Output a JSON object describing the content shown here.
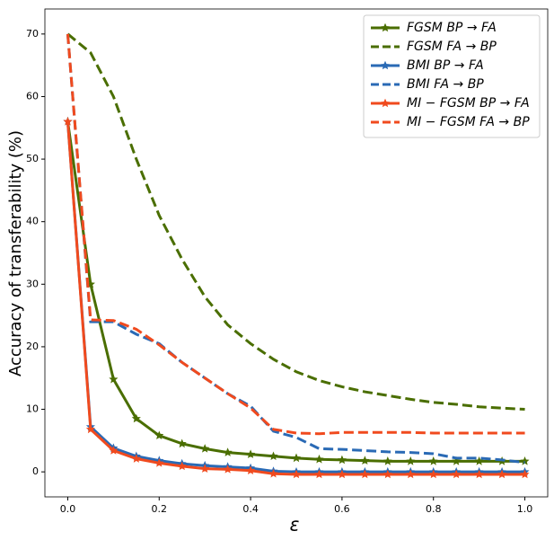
{
  "chart_data": {
    "type": "line",
    "xlabel": "ε",
    "ylabel": "Accuracy of transferability (%)",
    "x": [
      0,
      0.05,
      0.1,
      0.15,
      0.2,
      0.25,
      0.3,
      0.35,
      0.4,
      0.45,
      0.5,
      0.55,
      0.6,
      0.65,
      0.7,
      0.75,
      0.8,
      0.85,
      0.9,
      0.95,
      1.0
    ],
    "xlim": [
      -0.05,
      1.05
    ],
    "xticks": [
      {
        "value": 0,
        "label": "0.0"
      },
      0.2,
      0.4,
      0.6,
      0.8,
      {
        "value": 1,
        "label": "1.0"
      }
    ],
    "ylim": [
      -4,
      74
    ],
    "yticks": [
      0,
      10,
      20,
      30,
      40,
      50,
      60,
      70
    ],
    "legend": "upper right",
    "series": [
      {
        "name": "FGSM BP → FA",
        "color": "#4a6e00",
        "linestyle": "solid",
        "marker": "star",
        "values": [
          56,
          30,
          14.8,
          8.5,
          5.8,
          4.5,
          3.7,
          3.1,
          2.8,
          2.5,
          2.2,
          2.0,
          1.9,
          1.8,
          1.7,
          1.7,
          1.7,
          1.7,
          1.7,
          1.7,
          1.7
        ]
      },
      {
        "name": "FGSM FA → BP",
        "color": "#4a6e00",
        "linestyle": "dashed",
        "values": [
          70,
          67,
          60,
          50,
          41,
          34,
          28,
          23.5,
          20.5,
          18,
          16,
          14.6,
          13.6,
          12.8,
          12.2,
          11.6,
          11.1,
          10.8,
          10.4,
          10.2,
          10.0
        ]
      },
      {
        "name": "BMI BP → FA",
        "color": "#2a6ab5",
        "linestyle": "solid",
        "marker": "star",
        "values": [
          56,
          7.2,
          3.8,
          2.5,
          1.8,
          1.3,
          1.0,
          0.8,
          0.6,
          0.1,
          0.0,
          0.0,
          0.0,
          0.0,
          0.0,
          0.0,
          0.0,
          0.0,
          0.0,
          0.0,
          0.0
        ]
      },
      {
        "name": "BMI FA → BP",
        "color": "#2a6ab5",
        "linestyle": "dashed",
        "values": [
          70,
          24,
          24,
          22,
          20.5,
          17.5,
          15,
          12.5,
          10.5,
          6.5,
          5.5,
          3.7,
          3.6,
          3.4,
          3.2,
          3.1,
          2.9,
          2.2,
          2.2,
          1.9,
          1.5
        ]
      },
      {
        "name": "MI − FGSM BP → FA",
        "color": "#f04a1e",
        "linestyle": "solid",
        "marker": "star",
        "values": [
          56,
          6.8,
          3.4,
          2.1,
          1.4,
          0.9,
          0.5,
          0.4,
          0.2,
          -0.3,
          -0.4,
          -0.4,
          -0.4,
          -0.4,
          -0.4,
          -0.4,
          -0.4,
          -0.4,
          -0.4,
          -0.4,
          -0.4
        ]
      },
      {
        "name": "MI − FGSM FA → BP",
        "color": "#f04a1e",
        "linestyle": "dashed",
        "values": [
          70,
          24.3,
          24.2,
          22.8,
          20.3,
          17.5,
          15,
          12.5,
          10.2,
          6.8,
          6.2,
          6.1,
          6.3,
          6.3,
          6.3,
          6.3,
          6.2,
          6.2,
          6.2,
          6.2,
          6.2
        ]
      }
    ]
  }
}
